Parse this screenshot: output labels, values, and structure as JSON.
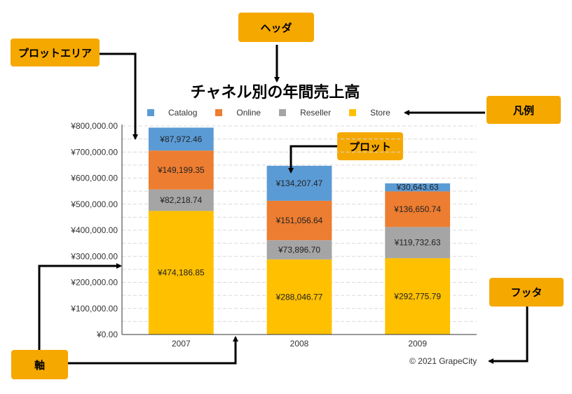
{
  "callouts": {
    "header": "ヘッダ",
    "plot_area": "プロットエリア",
    "legend": "凡例",
    "plot": "プロット",
    "footer": "フッタ",
    "axis": "軸"
  },
  "footer_text": "© 2021 GrapeCity",
  "colors": {
    "callout": "#f5a800",
    "Catalog": "#5b9bd5",
    "Online": "#ed7d31",
    "Reseller": "#a5a5a5",
    "Store": "#ffc000",
    "gridline": "#d9d9d9"
  },
  "chart_data": {
    "type": "bar",
    "stacked": true,
    "title": "チャネル別の年間売上高",
    "categories": [
      "2007",
      "2008",
      "2009"
    ],
    "series": [
      {
        "name": "Store",
        "values": [
          474186.85,
          288046.77,
          292775.79
        ],
        "labels": [
          "¥474,186.85",
          "¥288,046.77",
          "¥292,775.79"
        ]
      },
      {
        "name": "Reseller",
        "values": [
          82218.74,
          73896.7,
          119732.63
        ],
        "labels": [
          "¥82,218.74",
          "¥73,896.70",
          "¥119,732.63"
        ]
      },
      {
        "name": "Online",
        "values": [
          149199.35,
          151056.64,
          136650.74
        ],
        "labels": [
          "¥149,199.35",
          "¥151,056.64",
          "¥136,650.74"
        ]
      },
      {
        "name": "Catalog",
        "values": [
          87972.46,
          134207.47,
          30643.63
        ],
        "labels": [
          "¥87,972.46",
          "¥134,207.47",
          "¥30,643.63"
        ]
      }
    ],
    "legend_order": [
      "Catalog",
      "Online",
      "Reseller",
      "Store"
    ],
    "legend_position": "top",
    "ylim": [
      0,
      800000
    ],
    "yticks": [
      0,
      100000,
      200000,
      300000,
      400000,
      500000,
      600000,
      700000,
      800000
    ],
    "ytick_labels": [
      "¥0.00",
      "¥100,000.00",
      "¥200,000.00",
      "¥300,000.00",
      "¥400,000.00",
      "¥500,000.00",
      "¥600,000.00",
      "¥700,000.00",
      "¥800,000.00"
    ],
    "grid": "dashed horizontal"
  }
}
